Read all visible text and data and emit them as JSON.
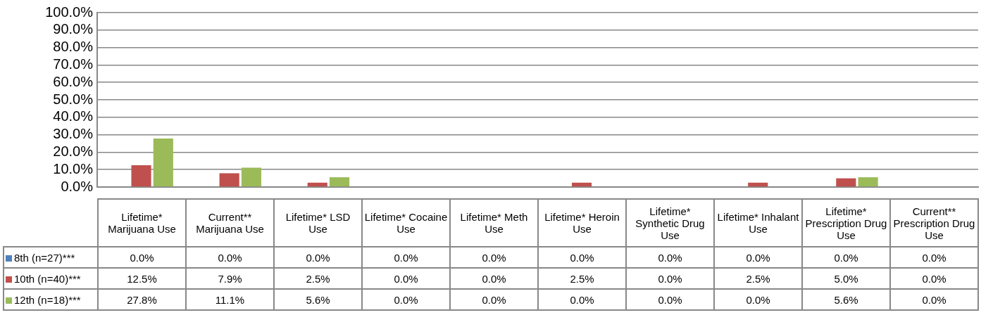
{
  "chart_data": {
    "type": "bar",
    "categories": [
      "Lifetime* Marijuana Use",
      "Current** Marijuana Use",
      "Lifetime* LSD Use",
      "Lifetime* Cocaine Use",
      "Lifetime* Meth Use",
      "Lifetime* Heroin Use",
      "Lifetime* Synthetic Drug Use",
      "Lifetime* Inhalant Use",
      "Lifetime* Prescription Drug Use",
      "Current** Prescription Drug Use"
    ],
    "series": [
      {
        "name": "8th (n=27)***",
        "color": "#4f81bd",
        "values": [
          0,
          0,
          0,
          0,
          0,
          0,
          0,
          0,
          0,
          0
        ],
        "value_labels": [
          "0.0%",
          "0.0%",
          "0.0%",
          "0.0%",
          "0.0%",
          "0.0%",
          "0.0%",
          "0.0%",
          "0.0%",
          "0.0%"
        ]
      },
      {
        "name": "10th (n=40)***",
        "color": "#c0504d",
        "values": [
          12.5,
          7.9,
          2.5,
          0,
          0,
          2.5,
          0,
          2.5,
          5.0,
          0
        ],
        "value_labels": [
          "12.5%",
          "7.9%",
          "2.5%",
          "0.0%",
          "0.0%",
          "2.5%",
          "0.0%",
          "2.5%",
          "5.0%",
          "0.0%"
        ]
      },
      {
        "name": "12th (n=18)***",
        "color": "#9bbb59",
        "values": [
          27.8,
          11.1,
          5.6,
          0,
          0,
          0,
          0,
          0,
          5.6,
          0
        ],
        "value_labels": [
          "27.8%",
          "11.1%",
          "5.6%",
          "0.0%",
          "0.0%",
          "0.0%",
          "0.0%",
          "0.0%",
          "5.6%",
          "0.0%"
        ]
      }
    ],
    "ylim": [
      0,
      100
    ],
    "yticks": [
      {
        "value": 0,
        "label": "0.0%"
      },
      {
        "value": 10,
        "label": "10.0%"
      },
      {
        "value": 20,
        "label": "20.0%"
      },
      {
        "value": 30,
        "label": "30.0%"
      },
      {
        "value": 40,
        "label": "40.0%"
      },
      {
        "value": 50,
        "label": "50.0%"
      },
      {
        "value": 60,
        "label": "60.0%"
      },
      {
        "value": 70,
        "label": "70.0%"
      },
      {
        "value": 80,
        "label": "80.0%"
      },
      {
        "value": 90,
        "label": "90.0%"
      },
      {
        "value": 100,
        "label": "100.0%"
      }
    ],
    "grid": "y",
    "legend": "bottom left"
  }
}
